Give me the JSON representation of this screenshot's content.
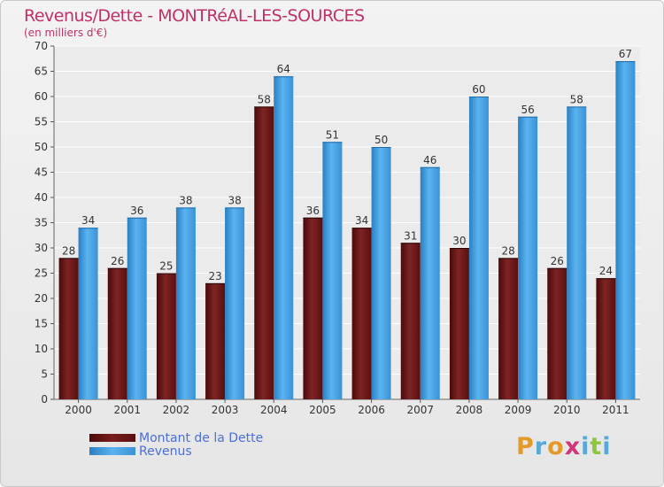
{
  "title": "Revenus/Dette - MONTRéAL-LES-SOURCES",
  "subtitle": "(en milliers d'€)",
  "logo": {
    "text": "Proxiti",
    "letters": [
      "P",
      "r",
      "o",
      "x",
      "i",
      "t",
      "i"
    ]
  },
  "chart_data": {
    "type": "bar",
    "categories": [
      "2000",
      "2001",
      "2002",
      "2003",
      "2004",
      "2005",
      "2006",
      "2007",
      "2008",
      "2009",
      "2010",
      "2011"
    ],
    "series": [
      {
        "name": "Montant de la Dette",
        "values": [
          28,
          26,
          25,
          23,
          58,
          36,
          34,
          31,
          30,
          28,
          26,
          24
        ],
        "color": "#7a1e1e"
      },
      {
        "name": "Revenus",
        "values": [
          34,
          36,
          38,
          38,
          64,
          51,
          50,
          46,
          60,
          56,
          58,
          67
        ],
        "color": "#4da6e6"
      }
    ],
    "ylim": [
      0,
      70
    ],
    "yticks": [
      0,
      5,
      10,
      15,
      20,
      25,
      30,
      35,
      40,
      45,
      50,
      55,
      60,
      65,
      70
    ],
    "grid": true,
    "legend": "bottom-left"
  }
}
